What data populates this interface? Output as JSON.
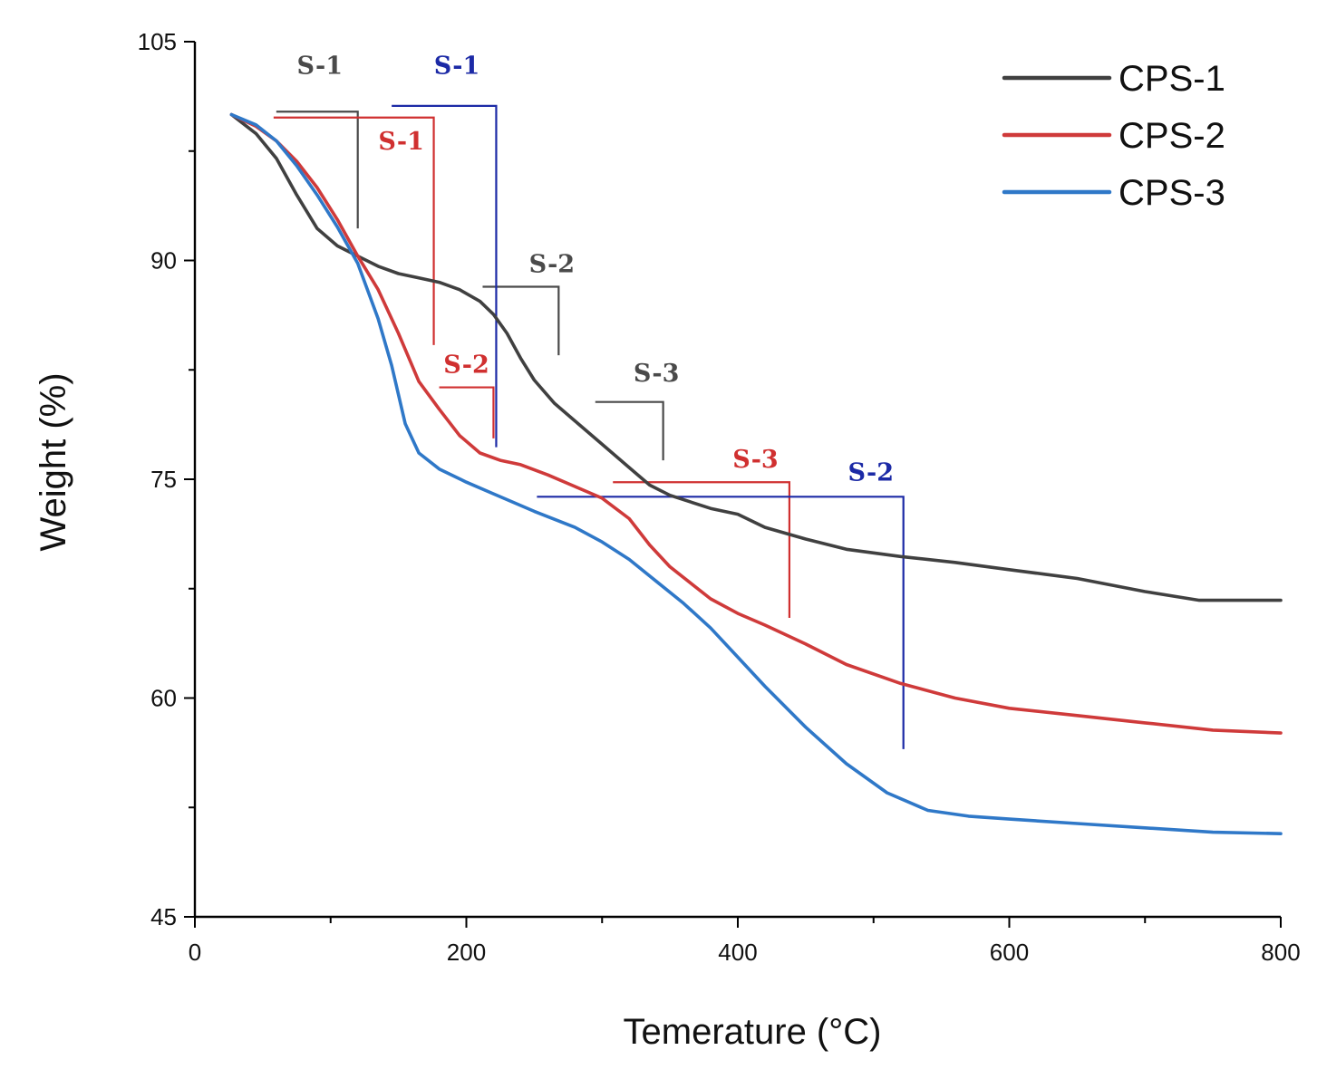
{
  "chart_data": {
    "type": "line",
    "title": "",
    "xlabel": "Temerature (°C)",
    "ylabel": "Weight (%)",
    "xlim": [
      0,
      800
    ],
    "ylim": [
      45,
      105
    ],
    "xticks": [
      0,
      200,
      400,
      600,
      800
    ],
    "yticks": [
      45,
      60,
      75,
      90,
      105
    ],
    "x_minor_ticks": [
      100,
      300,
      500,
      700
    ],
    "y_minor_ticks": [
      52.5,
      67.5,
      82.5,
      97.5
    ],
    "grid": false,
    "legend_position": "top-right",
    "series": [
      {
        "name": "CPS-1",
        "color": "#404040",
        "points": [
          [
            27,
            100
          ],
          [
            45,
            98.7
          ],
          [
            60,
            97
          ],
          [
            75,
            94.5
          ],
          [
            90,
            92.2
          ],
          [
            105,
            91
          ],
          [
            120,
            90.3
          ],
          [
            135,
            89.6
          ],
          [
            150,
            89.1
          ],
          [
            165,
            88.8
          ],
          [
            180,
            88.5
          ],
          [
            195,
            88
          ],
          [
            210,
            87.2
          ],
          [
            220,
            86.3
          ],
          [
            230,
            85
          ],
          [
            240,
            83.3
          ],
          [
            250,
            81.8
          ],
          [
            265,
            80.2
          ],
          [
            280,
            79
          ],
          [
            300,
            77.4
          ],
          [
            320,
            75.8
          ],
          [
            335,
            74.6
          ],
          [
            350,
            73.9
          ],
          [
            380,
            73
          ],
          [
            400,
            72.6
          ],
          [
            420,
            71.7
          ],
          [
            450,
            70.9
          ],
          [
            480,
            70.2
          ],
          [
            520,
            69.7
          ],
          [
            560,
            69.3
          ],
          [
            600,
            68.8
          ],
          [
            650,
            68.2
          ],
          [
            700,
            67.3
          ],
          [
            740,
            66.7
          ],
          [
            800,
            66.7
          ]
        ]
      },
      {
        "name": "CPS-2",
        "color": "#cf3a3a",
        "points": [
          [
            27,
            100
          ],
          [
            45,
            99.2
          ],
          [
            60,
            98.2
          ],
          [
            75,
            96.8
          ],
          [
            90,
            95
          ],
          [
            105,
            92.8
          ],
          [
            120,
            90.3
          ],
          [
            135,
            88
          ],
          [
            150,
            85
          ],
          [
            165,
            81.7
          ],
          [
            180,
            79.8
          ],
          [
            195,
            78
          ],
          [
            210,
            76.8
          ],
          [
            225,
            76.3
          ],
          [
            240,
            76
          ],
          [
            260,
            75.3
          ],
          [
            280,
            74.5
          ],
          [
            300,
            73.7
          ],
          [
            320,
            72.3
          ],
          [
            335,
            70.5
          ],
          [
            350,
            69
          ],
          [
            380,
            66.8
          ],
          [
            400,
            65.8
          ],
          [
            420,
            65
          ],
          [
            450,
            63.7
          ],
          [
            480,
            62.3
          ],
          [
            520,
            61
          ],
          [
            560,
            60
          ],
          [
            600,
            59.3
          ],
          [
            650,
            58.8
          ],
          [
            700,
            58.3
          ],
          [
            750,
            57.8
          ],
          [
            800,
            57.6
          ]
        ]
      },
      {
        "name": "CPS-3",
        "color": "#2f78c8",
        "points": [
          [
            27,
            100
          ],
          [
            45,
            99.3
          ],
          [
            60,
            98.2
          ],
          [
            75,
            96.5
          ],
          [
            90,
            94.5
          ],
          [
            105,
            92.3
          ],
          [
            120,
            89.8
          ],
          [
            135,
            86
          ],
          [
            145,
            82.8
          ],
          [
            155,
            78.8
          ],
          [
            165,
            76.8
          ],
          [
            180,
            75.7
          ],
          [
            200,
            74.8
          ],
          [
            220,
            74
          ],
          [
            250,
            72.8
          ],
          [
            280,
            71.7
          ],
          [
            300,
            70.7
          ],
          [
            320,
            69.5
          ],
          [
            340,
            68
          ],
          [
            360,
            66.5
          ],
          [
            380,
            64.8
          ],
          [
            400,
            62.8
          ],
          [
            420,
            60.8
          ],
          [
            450,
            58
          ],
          [
            480,
            55.5
          ],
          [
            510,
            53.5
          ],
          [
            540,
            52.3
          ],
          [
            570,
            51.9
          ],
          [
            600,
            51.7
          ],
          [
            650,
            51.4
          ],
          [
            700,
            51.1
          ],
          [
            750,
            50.8
          ],
          [
            800,
            50.7
          ]
        ]
      }
    ],
    "stage_markers": [
      {
        "label": "S-1",
        "color": "#4a4a4a",
        "series": "CPS-1",
        "x_start": 60,
        "x_end": 120,
        "weight_start": 100.2,
        "weight_end": 92.2,
        "label_x": 92,
        "label_y": 102.8
      },
      {
        "label": "S-2",
        "color": "#4a4a4a",
        "series": "CPS-1",
        "x_start": 212,
        "x_end": 268,
        "weight_start": 88.2,
        "weight_end": 83.5,
        "label_x": 263,
        "label_y": 89.2
      },
      {
        "label": "S-3",
        "color": "#4a4a4a",
        "series": "CPS-1",
        "x_start": 295,
        "x_end": 345,
        "weight_start": 80.3,
        "weight_end": 76.3,
        "label_x": 340,
        "label_y": 81.7
      },
      {
        "label": "S-1",
        "color": "#d03030",
        "series": "CPS-2",
        "x_start": 58,
        "x_end": 176,
        "weight_start": 99.8,
        "weight_end": 84.2,
        "label_x": 152,
        "label_y": 97.6
      },
      {
        "label": "S-2",
        "color": "#d03030",
        "series": "CPS-2",
        "x_start": 180,
        "x_end": 220,
        "weight_start": 81.3,
        "weight_end": 77.8,
        "label_x": 200,
        "label_y": 82.3
      },
      {
        "label": "S-3",
        "color": "#d03030",
        "series": "CPS-2",
        "x_start": 308,
        "x_end": 438,
        "weight_start": 74.8,
        "weight_end": 65.5,
        "label_x": 413,
        "label_y": 75.8
      },
      {
        "label": "S-1",
        "color": "#1c2aa6",
        "series": "CPS-3",
        "x_start": 145,
        "x_end": 222,
        "weight_start": 100.6,
        "weight_end": 77.2,
        "label_x": 193,
        "label_y": 102.8
      },
      {
        "label": "S-2",
        "color": "#1c2aa6",
        "series": "CPS-3",
        "x_start": 252,
        "x_end": 522,
        "weight_start": 73.8,
        "weight_end": 56.5,
        "label_x": 498,
        "label_y": 74.9
      }
    ]
  }
}
